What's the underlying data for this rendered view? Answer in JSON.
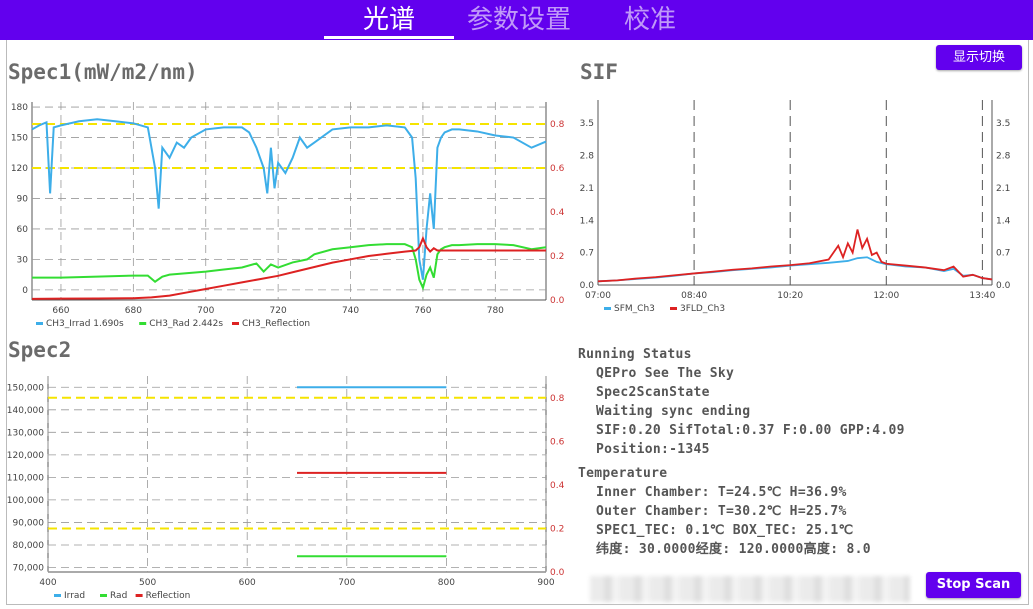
{
  "tabs": [
    {
      "label": "光谱",
      "active": true
    },
    {
      "label": "参数设置",
      "active": false
    },
    {
      "label": "校准",
      "active": false
    }
  ],
  "colors": {
    "accent": "#6200ee",
    "irrad": "#3daee9",
    "rad": "#33dd33",
    "reflection": "#dd2222",
    "threshold": "#f5e400"
  },
  "spec1": {
    "title": "Spec1(mW/m2/nm)",
    "legend": [
      "CH3_Irrad 1.690s",
      "CH3_Rad 2.442s",
      "CH3_Reflection"
    ],
    "chart_data": {
      "type": "line",
      "xlim": [
        652,
        794
      ],
      "ylim": [
        -10,
        185
      ],
      "y2lim": [
        0,
        0.9
      ],
      "x_ticks": [
        660,
        680,
        700,
        720,
        740,
        760,
        780
      ],
      "y_ticks": [
        0,
        30,
        60,
        90,
        120,
        150,
        180
      ],
      "y2_ticks": [
        0.0,
        0.2,
        0.4,
        0.6,
        0.8
      ],
      "thresholds_right_axis": [
        0.6,
        0.8
      ],
      "grid": true,
      "series": [
        {
          "name": "CH3_Irrad 1.690s",
          "color": "#3daee9",
          "x": [
            652,
            654,
            656,
            657,
            658,
            660,
            665,
            670,
            675,
            680,
            684,
            686,
            687,
            688,
            690,
            692,
            694,
            696,
            700,
            705,
            710,
            712,
            714,
            716,
            717,
            718,
            719,
            720,
            722,
            724,
            726,
            728,
            730,
            735,
            740,
            745,
            750,
            755,
            757,
            758,
            759,
            760,
            761,
            762,
            763,
            764,
            765,
            766,
            768,
            770,
            775,
            780,
            785,
            790,
            794
          ],
          "y": [
            158,
            162,
            165,
            95,
            160,
            162,
            166,
            168,
            166,
            164,
            160,
            120,
            80,
            140,
            130,
            145,
            140,
            150,
            158,
            160,
            160,
            155,
            140,
            120,
            95,
            140,
            100,
            125,
            115,
            130,
            150,
            140,
            145,
            158,
            160,
            160,
            162,
            160,
            150,
            110,
            30,
            10,
            60,
            95,
            60,
            140,
            150,
            155,
            158,
            158,
            156,
            152,
            150,
            140,
            146
          ]
        },
        {
          "name": "CH3_Rad 2.442s",
          "color": "#33dd33",
          "x": [
            652,
            660,
            670,
            680,
            684,
            686,
            688,
            690,
            700,
            705,
            710,
            714,
            716,
            718,
            720,
            724,
            728,
            730,
            735,
            740,
            745,
            750,
            755,
            757,
            758,
            759,
            760,
            761,
            762,
            763,
            764,
            765,
            766,
            768,
            770,
            775,
            780,
            785,
            790,
            794
          ],
          "y": [
            12,
            12,
            13,
            14,
            14,
            8,
            13,
            15,
            18,
            20,
            22,
            26,
            18,
            25,
            22,
            27,
            30,
            35,
            40,
            42,
            44,
            45,
            45,
            42,
            30,
            10,
            2,
            15,
            22,
            12,
            35,
            40,
            42,
            44,
            44,
            45,
            45,
            44,
            40,
            42
          ]
        },
        {
          "name": "CH3_Reflection",
          "color": "#dd2222",
          "x": [
            652,
            660,
            670,
            680,
            685,
            690,
            695,
            700,
            705,
            710,
            715,
            720,
            725,
            730,
            735,
            740,
            745,
            750,
            755,
            758,
            759,
            760,
            761,
            762,
            763,
            764,
            766,
            770,
            780,
            790,
            794
          ],
          "y": [
            0.005,
            0.006,
            0.007,
            0.008,
            0.012,
            0.02,
            0.035,
            0.05,
            0.065,
            0.08,
            0.095,
            0.11,
            0.13,
            0.15,
            0.17,
            0.185,
            0.2,
            0.21,
            0.22,
            0.225,
            0.24,
            0.28,
            0.24,
            0.22,
            0.235,
            0.225,
            0.225,
            0.225,
            0.225,
            0.225,
            0.225
          ]
        }
      ]
    }
  },
  "sif": {
    "title": "SIF",
    "legend": [
      "SFM_Ch3",
      "3FLD_Ch3"
    ],
    "chart_data": {
      "type": "line",
      "x_ticks": [
        "07:00",
        "08:40",
        "10:20",
        "12:00",
        "13:40"
      ],
      "xlim_minutes": [
        420,
        830
      ],
      "y_ticks": [
        0.0,
        0.7,
        1.4,
        2.1,
        2.8,
        3.5
      ],
      "ylim": [
        0,
        4.0
      ],
      "series": [
        {
          "name": "SFM_Ch3",
          "color": "#3daee9",
          "x": [
            420,
            440,
            460,
            480,
            500,
            520,
            540,
            560,
            580,
            600,
            620,
            640,
            660,
            680,
            690,
            700,
            705,
            710,
            720,
            740,
            760,
            780,
            790,
            800,
            810,
            820,
            830
          ],
          "y": [
            0.08,
            0.1,
            0.13,
            0.16,
            0.2,
            0.25,
            0.28,
            0.32,
            0.35,
            0.38,
            0.42,
            0.45,
            0.48,
            0.52,
            0.58,
            0.6,
            0.55,
            0.5,
            0.45,
            0.4,
            0.38,
            0.3,
            0.35,
            0.2,
            0.22,
            0.15,
            0.12
          ]
        },
        {
          "name": "3FLD_Ch3",
          "color": "#dd2222",
          "x": [
            420,
            440,
            460,
            480,
            500,
            520,
            540,
            560,
            580,
            600,
            620,
            640,
            660,
            670,
            675,
            680,
            685,
            690,
            695,
            700,
            705,
            710,
            715,
            720,
            740,
            760,
            780,
            790,
            800,
            810,
            820,
            830
          ],
          "y": [
            0.08,
            0.1,
            0.14,
            0.17,
            0.21,
            0.25,
            0.29,
            0.33,
            0.36,
            0.4,
            0.43,
            0.47,
            0.55,
            0.85,
            0.6,
            0.9,
            0.7,
            1.2,
            0.8,
            1.0,
            0.65,
            0.7,
            0.5,
            0.46,
            0.42,
            0.38,
            0.32,
            0.4,
            0.18,
            0.22,
            0.15,
            0.12
          ]
        }
      ]
    }
  },
  "spec2": {
    "title": "Spec2",
    "legend": [
      "Irrad",
      "Rad",
      "Reflection"
    ],
    "chart_data": {
      "type": "line",
      "xlim": [
        400,
        900
      ],
      "ylim": [
        68000,
        155000
      ],
      "y2lim": [
        0,
        0.9
      ],
      "x_ticks": [
        400,
        500,
        600,
        700,
        800,
        900
      ],
      "y_ticks": [
        70000,
        80000,
        90000,
        100000,
        110000,
        120000,
        130000,
        140000,
        150000
      ],
      "y_tick_labels": [
        "70,000",
        "80,000",
        "90,000",
        "100,000",
        "110,000",
        "120,000",
        "130,000",
        "140,000",
        "150,000"
      ],
      "y2_ticks": [
        0.0,
        0.2,
        0.4,
        0.6,
        0.8
      ],
      "thresholds_right_axis": [
        0.2,
        0.8
      ],
      "grid": true,
      "series": [
        {
          "name": "Irrad",
          "color": "#3daee9",
          "x": [
            650,
            800
          ],
          "y": [
            150000,
            150000
          ]
        },
        {
          "name": "Rad",
          "color": "#33dd33",
          "x": [
            650,
            800
          ],
          "y": [
            75000,
            75000
          ]
        },
        {
          "name": "Reflection",
          "color": "#dd2222",
          "x": [
            650,
            800
          ],
          "y": [
            112000,
            112000
          ]
        }
      ]
    }
  },
  "buttons": {
    "display_switch": "显示切换",
    "stop_scan": "Stop Scan"
  },
  "running": {
    "title": "Running Status",
    "lines": [
      "QEPro See The Sky",
      "Spec2ScanState",
      "Waiting sync ending",
      "SIF:0.20   SifTotal:0.37 F:0.00   GPP:4.09",
      "Position:-1345"
    ]
  },
  "temperature": {
    "title": "Temperature",
    "lines": [
      "Inner Chamber: T=24.5℃  H=36.9%",
      "Outer Chamber: T=30.2℃  H=25.7%",
      "SPEC1_TEC: 0.1℃  BOX_TEC: 25.1℃",
      "纬度: 30.0000经度: 120.0000高度: 8.0"
    ]
  }
}
